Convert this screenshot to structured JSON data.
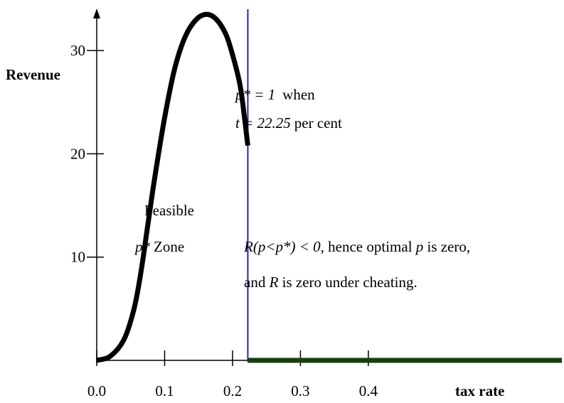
{
  "chart_data": {
    "type": "line",
    "xlabel": "tax rate",
    "ylabel": "Revenue",
    "xlim": [
      0.0,
      0.685
    ],
    "ylim": [
      0,
      34
    ],
    "x_ticks": [
      0.0,
      0.1,
      0.2,
      0.3,
      0.4
    ],
    "x_tick_labels": [
      "0.0",
      "0.1",
      "0.2",
      "0.3",
      "0.4"
    ],
    "y_ticks": [
      10,
      20,
      30
    ],
    "y_tick_labels": [
      "10",
      "20",
      "30"
    ],
    "grid": false,
    "legend": "none",
    "series": [
      {
        "color": "#000000",
        "points": [
          [
            0.0,
            0.0
          ],
          [
            0.02,
            0.4
          ],
          [
            0.04,
            2.0
          ],
          [
            0.055,
            5.0
          ],
          [
            0.065,
            8.5
          ],
          [
            0.075,
            13.0
          ],
          [
            0.085,
            17.5
          ],
          [
            0.1,
            23.5
          ],
          [
            0.115,
            28.3
          ],
          [
            0.13,
            31.3
          ],
          [
            0.145,
            32.9
          ],
          [
            0.16,
            33.5
          ],
          [
            0.175,
            33.1
          ],
          [
            0.19,
            31.6
          ],
          [
            0.2,
            29.6
          ],
          [
            0.21,
            27.0
          ],
          [
            0.215,
            24.9
          ],
          [
            0.2225,
            20.8
          ]
        ]
      },
      {
        "color": "#1a3d12",
        "points": [
          [
            0.2225,
            0.0
          ],
          [
            0.685,
            0.0
          ]
        ]
      }
    ],
    "vertical_line": {
      "x": 0.2225,
      "color": "#2323c8"
    },
    "annotations": {
      "optimum_line1": {
        "p1": "p* = 1",
        "p2": "when"
      },
      "optimum_line2": {
        "p1": "t = 22.25",
        "p2": "per cent"
      },
      "feasible_line1": "Feasible",
      "feasible_line2": {
        "p1": "p*",
        "p2": "Zone"
      },
      "cheating_line1": {
        "p1": "R(p<p*) < 0",
        "p2": ", hence optimal ",
        "p3": "p",
        "p4": " is zero,"
      },
      "cheating_line2": {
        "p1": "and ",
        "p2": "R",
        "p3": " is zero under cheating."
      }
    }
  }
}
